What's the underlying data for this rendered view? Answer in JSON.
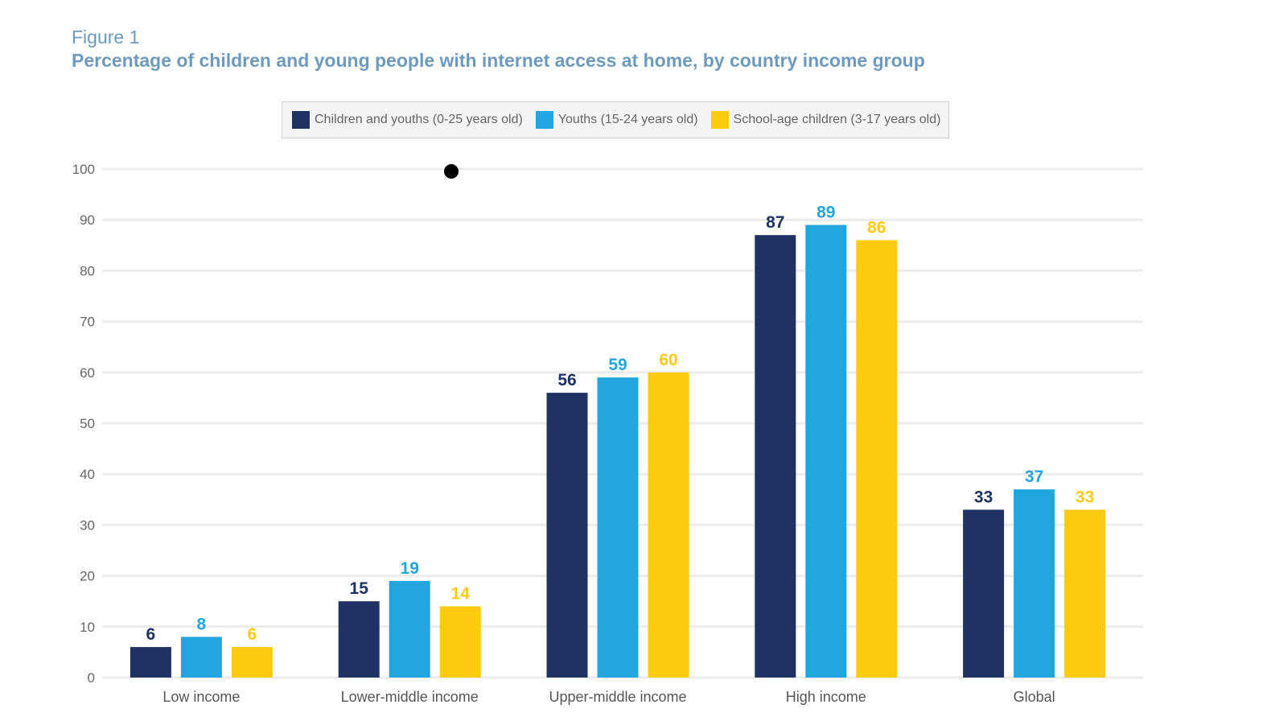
{
  "figure_label": "Figure 1",
  "chart_data": {
    "type": "bar",
    "title": "Percentage of children and young people with internet access at home, by country income group",
    "categories": [
      "Low income",
      "Lower-middle income",
      "Upper-middle income",
      "High income",
      "Global"
    ],
    "series": [
      {
        "name": "Children and youths (0-25 years old)",
        "color": "#1f3264",
        "values": [
          6,
          15,
          56,
          87,
          33
        ]
      },
      {
        "name": "Youths (15-24 years old)",
        "color": "#22a6e0",
        "values": [
          8,
          19,
          59,
          89,
          37
        ]
      },
      {
        "name": "School-age children (3-17 years old)",
        "color": "#fcca10",
        "values": [
          6,
          14,
          60,
          86,
          33
        ]
      }
    ],
    "ylim": [
      0,
      100
    ],
    "yticks": [
      0,
      10,
      20,
      30,
      40,
      50,
      60,
      70,
      80,
      90,
      100
    ],
    "xlabel": "",
    "ylabel": "",
    "grid": true,
    "legend_position": "top-center"
  }
}
